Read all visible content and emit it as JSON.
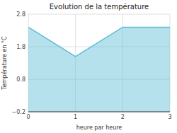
{
  "chart_data": {
    "type": "area",
    "title": "Evolution de la température",
    "xlabel": "heure par heure",
    "ylabel": "Température en °C",
    "x": [
      0,
      1,
      2,
      3
    ],
    "values": [
      2.4,
      1.5,
      2.4,
      2.4
    ],
    "color": "#5bbcd6",
    "xlim": [
      0,
      3
    ],
    "ylim": [
      -0.2,
      2.8
    ],
    "xticks": [
      0,
      1,
      2,
      3
    ],
    "yticks": [
      {
        "value": -0.2,
        "label": "−0.2"
      },
      0.8,
      1.8,
      2.8
    ],
    "grid": true
  }
}
